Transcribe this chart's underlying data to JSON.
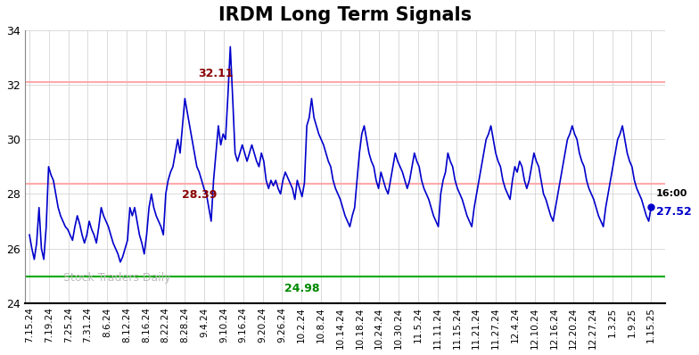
{
  "title": "IRDM Long Term Signals",
  "title_fontsize": 15,
  "title_fontweight": "bold",
  "line_color": "#0000cc",
  "line_width": 1.2,
  "hline_upper": 32.11,
  "hline_mid": 28.39,
  "hline_lower": 24.98,
  "hline_upper_color": "#ffaaaa",
  "hline_mid_color": "#ffaaaa",
  "hline_lower_color": "#00aa00",
  "annotation_high_label": "32.11",
  "annotation_high_color": "#880000",
  "annotation_mid_label": "28.39",
  "annotation_mid_color": "#880000",
  "annotation_low_label": "24.98",
  "annotation_low_color": "#008800",
  "annotation_end_label": "27.52",
  "annotation_end_time_label": "16:00",
  "annotation_end_color": "#0000cc",
  "watermark": "Stock Traders Daily",
  "watermark_color": "#bbbbbb",
  "ylim": [
    24,
    34
  ],
  "yticks": [
    24,
    26,
    28,
    30,
    32,
    34
  ],
  "bg_color": "#ffffff",
  "grid_color": "#cccccc",
  "prices": [
    26.5,
    26.0,
    25.6,
    26.2,
    27.5,
    26.0,
    25.6,
    26.8,
    29.0,
    28.7,
    28.5,
    28.0,
    27.5,
    27.2,
    27.0,
    26.8,
    26.7,
    26.5,
    26.3,
    26.8,
    27.2,
    26.9,
    26.5,
    26.2,
    26.5,
    27.0,
    26.7,
    26.5,
    26.2,
    26.8,
    27.5,
    27.2,
    27.0,
    26.8,
    26.5,
    26.2,
    26.0,
    25.8,
    25.5,
    25.7,
    26.0,
    26.3,
    27.5,
    27.2,
    27.5,
    27.0,
    26.5,
    26.2,
    25.8,
    26.5,
    27.5,
    28.0,
    27.5,
    27.2,
    27.0,
    26.8,
    26.5,
    28.0,
    28.5,
    28.8,
    29.0,
    29.5,
    30.0,
    29.5,
    30.5,
    31.5,
    31.0,
    30.5,
    30.0,
    29.5,
    29.0,
    28.8,
    28.5,
    28.2,
    28.0,
    27.5,
    27.0,
    28.5,
    29.5,
    30.5,
    29.8,
    30.2,
    30.0,
    31.6,
    33.4,
    31.5,
    29.5,
    29.2,
    29.5,
    29.8,
    29.5,
    29.2,
    29.5,
    29.8,
    29.5,
    29.2,
    29.0,
    29.5,
    29.2,
    28.5,
    28.2,
    28.5,
    28.3,
    28.5,
    28.2,
    28.0,
    28.5,
    28.8,
    28.6,
    28.4,
    28.2,
    27.8,
    28.5,
    28.2,
    27.9,
    28.4,
    30.5,
    30.8,
    31.5,
    30.8,
    30.5,
    30.2,
    30.0,
    29.8,
    29.5,
    29.2,
    29.0,
    28.5,
    28.2,
    28.0,
    27.8,
    27.5,
    27.2,
    27.0,
    26.8,
    27.2,
    27.5,
    28.5,
    29.5,
    30.2,
    30.5,
    30.0,
    29.5,
    29.2,
    29.0,
    28.5,
    28.2,
    28.8,
    28.5,
    28.2,
    28.0,
    28.5,
    29.0,
    29.5,
    29.2,
    29.0,
    28.8,
    28.5,
    28.2,
    28.5,
    29.0,
    29.5,
    29.2,
    29.0,
    28.5,
    28.2,
    28.0,
    27.8,
    27.5,
    27.2,
    27.0,
    26.8,
    28.0,
    28.5,
    28.8,
    29.5,
    29.2,
    29.0,
    28.5,
    28.2,
    28.0,
    27.8,
    27.5,
    27.2,
    27.0,
    26.8,
    27.5,
    28.0,
    28.5,
    29.0,
    29.5,
    30.0,
    30.2,
    30.5,
    30.0,
    29.5,
    29.2,
    29.0,
    28.5,
    28.2,
    28.0,
    27.8,
    28.5,
    29.0,
    28.8,
    29.2,
    29.0,
    28.5,
    28.2,
    28.5,
    29.0,
    29.5,
    29.2,
    29.0,
    28.5,
    28.0,
    27.8,
    27.5,
    27.2,
    27.0,
    27.5,
    28.0,
    28.5,
    29.0,
    29.5,
    30.0,
    30.2,
    30.5,
    30.2,
    30.0,
    29.5,
    29.2,
    29.0,
    28.5,
    28.2,
    28.0,
    27.8,
    27.5,
    27.2,
    27.0,
    26.8,
    27.5,
    28.0,
    28.5,
    29.0,
    29.5,
    30.0,
    30.2,
    30.5,
    30.0,
    29.5,
    29.2,
    29.0,
    28.5,
    28.2,
    28.0,
    27.8,
    27.5,
    27.2,
    27.0,
    27.52
  ],
  "x_tick_labels": [
    "7.15.24",
    "7.19.24",
    "7.25.24",
    "7.31.24",
    "8.6.24",
    "8.12.24",
    "8.16.24",
    "8.22.24",
    "8.28.24",
    "9.4.24",
    "9.10.24",
    "9.16.24",
    "9.20.24",
    "9.26.24",
    "10.2.24",
    "10.8.24",
    "10.14.24",
    "10.18.24",
    "10.24.24",
    "10.30.24",
    "11.5.24",
    "11.11.24",
    "11.15.24",
    "11.21.24",
    "11.27.24",
    "12.4.24",
    "12.10.24",
    "12.16.24",
    "12.20.24",
    "12.27.24",
    "1.3.25",
    "1.9.25",
    "1.15.25"
  ]
}
